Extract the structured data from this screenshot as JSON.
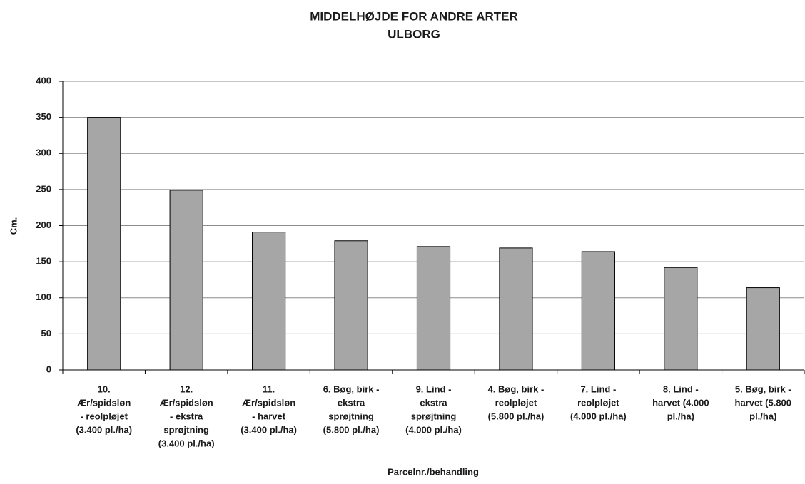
{
  "chart_data": {
    "type": "bar",
    "title": "MIDDELHØJDE FOR ANDRE ARTER",
    "subtitle": "ULBORG",
    "y_label": "Cm.",
    "x_label": "Parcelnr./behandling",
    "categories": [
      [
        "10.",
        "Ær/spidsløn",
        "- reolpløjet",
        "(3.400 pl./ha)"
      ],
      [
        "12.",
        "Ær/spidsløn",
        "- ekstra",
        "sprøjtning",
        "(3.400 pl./ha)"
      ],
      [
        "11.",
        "Ær/spidsløn",
        "- harvet",
        "(3.400 pl./ha)"
      ],
      [
        "6. Bøg, birk -",
        "ekstra",
        "sprøjtning",
        "(5.800 pl./ha)"
      ],
      [
        "9. Lind -",
        "ekstra",
        "sprøjtning",
        "(4.000 pl./ha)"
      ],
      [
        "4. Bøg, birk -",
        "reolpløjet",
        "(5.800 pl./ha)"
      ],
      [
        "7. Lind -",
        "reolpløjet",
        "(4.000 pl./ha)"
      ],
      [
        "8. Lind -",
        "harvet (4.000",
        "pl./ha)"
      ],
      [
        "5. Bøg, birk -",
        "harvet (5.800",
        "pl./ha)"
      ]
    ],
    "values": [
      350,
      249,
      191,
      179,
      171,
      169,
      164,
      142,
      114
    ],
    "color": "#a6a6a6",
    "ylim": [
      0,
      400
    ],
    "yticks": [
      0,
      50,
      100,
      150,
      200,
      250,
      300,
      350,
      400
    ],
    "grid": true
  }
}
